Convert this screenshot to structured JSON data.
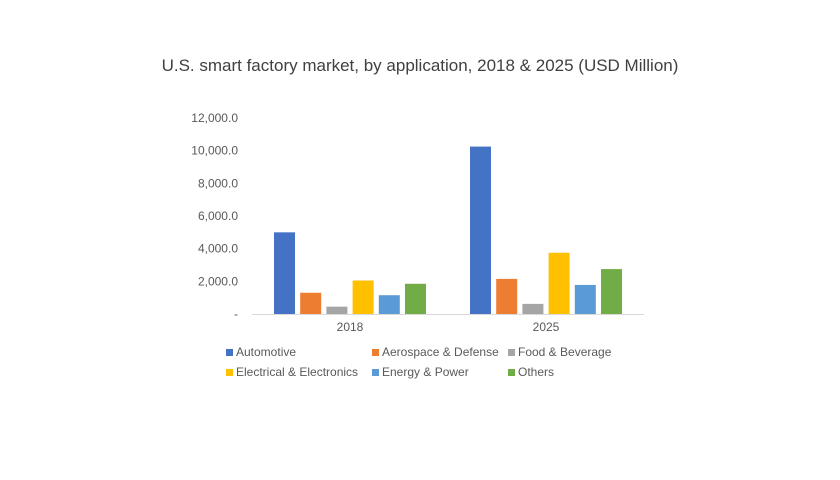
{
  "chart_data": {
    "type": "bar",
    "title": "U.S. smart factory market, by application, 2018 & 2025 (USD Million)",
    "categories": [
      "2018",
      "2025"
    ],
    "series": [
      {
        "name": "Automotive",
        "color": "#4472C4",
        "values": [
          5000,
          10250
        ]
      },
      {
        "name": "Aerospace & Defense",
        "color": "#ED7D31",
        "values": [
          1300,
          2150
        ]
      },
      {
        "name": "Food & Beverage",
        "color": "#A5A5A5",
        "values": [
          450,
          620
        ]
      },
      {
        "name": "Electrical & Electronics",
        "color": "#FFC000",
        "values": [
          2050,
          3750
        ]
      },
      {
        "name": "Energy & Power",
        "color": "#5B9BD5",
        "values": [
          1150,
          1780
        ]
      },
      {
        "name": "Others",
        "color": "#70AD47",
        "values": [
          1850,
          2750
        ]
      }
    ],
    "ylim": [
      0,
      12000
    ],
    "yticks": [
      "-",
      "2,000.0",
      "4,000.0",
      "6,000.0",
      "8,000.0",
      "10,000.0",
      "12,000.0"
    ],
    "grid": false,
    "legend_position": "bottom"
  }
}
